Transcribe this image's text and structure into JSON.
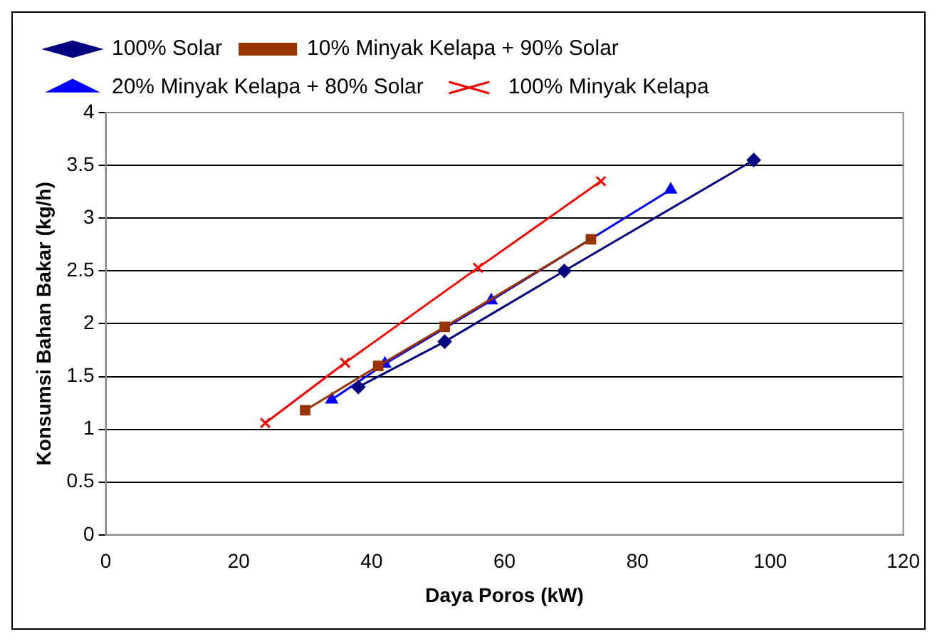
{
  "chart_data": {
    "type": "line",
    "xlabel": "Daya Poros (kW)",
    "ylabel": "Konsumsi Bahan Bakar (kg/h)",
    "xlim": [
      0,
      120
    ],
    "xticks": [
      0,
      20,
      40,
      60,
      80,
      100,
      120
    ],
    "ylim": [
      0,
      4
    ],
    "yticks": [
      0,
      0.5,
      1,
      1.5,
      2,
      2.5,
      3,
      3.5,
      4
    ],
    "grid": "y",
    "legend": "top",
    "series": [
      {
        "name": "100% Solar",
        "color": "#000080",
        "marker": "diamond",
        "x": [
          38,
          51,
          69,
          97.5
        ],
        "values": [
          1.4,
          1.83,
          2.5,
          3.55
        ]
      },
      {
        "name": "10% Minyak Kelapa + 90% Solar",
        "color": "#993300",
        "marker": "square",
        "x": [
          30,
          41,
          51,
          73
        ],
        "values": [
          1.18,
          1.6,
          1.97,
          2.8
        ]
      },
      {
        "name": "20% Minyak Kelapa + 80% Solar",
        "color": "#0000ff",
        "marker": "triangle",
        "x": [
          34,
          42,
          58,
          85
        ],
        "values": [
          1.28,
          1.62,
          2.22,
          3.27
        ]
      },
      {
        "name": "100% Minyak Kelapa",
        "color": "#ff0000",
        "marker": "cross",
        "x": [
          24,
          36,
          56,
          74.5
        ],
        "values": [
          1.06,
          1.63,
          2.53,
          3.35
        ]
      }
    ]
  }
}
